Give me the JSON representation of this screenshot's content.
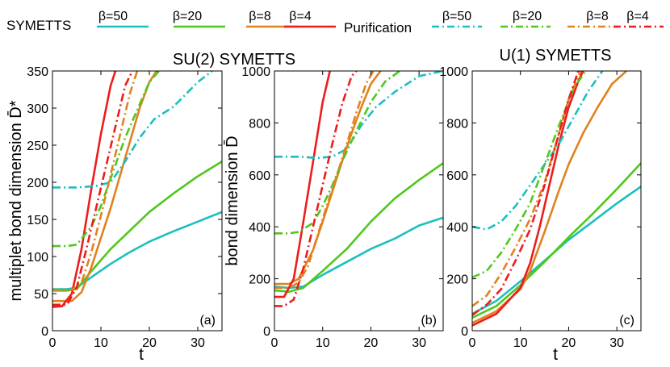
{
  "legend": {
    "symetts_label": "SYMETTS",
    "purification_label": "Purification",
    "entries": [
      {
        "label": "β=50",
        "color": "#1cbfbf"
      },
      {
        "label": "β=20",
        "color": "#4fc81c"
      },
      {
        "label": "β=8",
        "color": "#e0821e"
      },
      {
        "label": "β=4",
        "color": "#ee1c1c"
      }
    ]
  },
  "chart_data": [
    {
      "type": "line",
      "title": "SU(2) SYMETTS",
      "xlabel": "t",
      "ylabel": "multiplet bond dimension D̄*",
      "panel_label": "(a)",
      "xlim": [
        0,
        35
      ],
      "ylim": [
        0,
        350
      ],
      "xticks": [
        0,
        10,
        20,
        30
      ],
      "yticks": [
        0,
        50,
        100,
        150,
        200,
        250,
        300,
        350
      ],
      "series": [
        {
          "name": "SYMETTS β=50",
          "color": "#1cbfbf",
          "style": "solid",
          "x": [
            0,
            3,
            5,
            8,
            12,
            16,
            20,
            25,
            30,
            35
          ],
          "y": [
            56,
            56,
            58,
            72,
            90,
            106,
            120,
            134,
            147,
            160
          ]
        },
        {
          "name": "SYMETTS β=20",
          "color": "#4fc81c",
          "style": "solid",
          "x": [
            0,
            3,
            5,
            8,
            12,
            16,
            20,
            25,
            30,
            35
          ],
          "y": [
            54,
            54,
            56,
            80,
            110,
            135,
            160,
            185,
            208,
            228
          ]
        },
        {
          "name": "SYMETTS β=8",
          "color": "#e0821e",
          "style": "solid",
          "x": [
            0,
            4,
            6,
            8,
            10,
            12,
            14,
            16,
            18,
            20,
            21.5
          ],
          "y": [
            40,
            40,
            52,
            85,
            125,
            165,
            210,
            255,
            300,
            335,
            350
          ]
        },
        {
          "name": "SYMETTS β=4",
          "color": "#ee1c1c",
          "style": "solid",
          "x": [
            0,
            2,
            4,
            6,
            8,
            10,
            12,
            13
          ],
          "y": [
            32,
            33,
            50,
            110,
            190,
            265,
            330,
            350
          ]
        },
        {
          "name": "Purification β=50",
          "color": "#1cbfbf",
          "style": "dashdot",
          "x": [
            0,
            5,
            9,
            12,
            15,
            18,
            21,
            25,
            30,
            33
          ],
          "y": [
            193,
            193,
            195,
            200,
            228,
            260,
            285,
            302,
            335,
            350
          ]
        },
        {
          "name": "Purification β=20",
          "color": "#4fc81c",
          "style": "dashdot",
          "x": [
            0,
            3,
            5,
            8,
            10,
            12,
            15,
            18,
            20,
            22
          ],
          "y": [
            114,
            114,
            116,
            140,
            168,
            205,
            260,
            305,
            335,
            350
          ]
        },
        {
          "name": "Purification β=8",
          "color": "#e0821e",
          "style": "dashdot",
          "x": [
            0,
            4,
            6,
            8,
            10,
            12,
            14,
            16,
            17.5
          ],
          "y": [
            55,
            55,
            65,
            105,
            155,
            210,
            265,
            320,
            350
          ]
        },
        {
          "name": "Purification β=4",
          "color": "#ee1c1c",
          "style": "dashdot",
          "x": [
            0,
            3,
            5,
            7,
            9,
            11,
            13,
            15,
            16.5
          ],
          "y": [
            35,
            35,
            58,
            110,
            165,
            220,
            275,
            330,
            350
          ]
        }
      ]
    },
    {
      "type": "line",
      "title": "",
      "xlabel": "",
      "ylabel": "bond dimension D̄",
      "panel_label": "(b)",
      "xlim": [
        0,
        35
      ],
      "ylim": [
        0,
        1000
      ],
      "xticks": [
        0,
        10,
        20,
        30
      ],
      "yticks": [
        0,
        200,
        400,
        600,
        800,
        1000
      ],
      "series": [
        {
          "name": "SYMETTS β=50",
          "color": "#1cbfbf",
          "style": "solid",
          "x": [
            0,
            3,
            6,
            10,
            15,
            20,
            25,
            30,
            35
          ],
          "y": [
            170,
            165,
            170,
            215,
            265,
            315,
            355,
            405,
            435
          ]
        },
        {
          "name": "SYMETTS β=20",
          "color": "#4fc81c",
          "style": "solid",
          "x": [
            0,
            3,
            6,
            10,
            15,
            20,
            25,
            30,
            35
          ],
          "y": [
            155,
            150,
            165,
            230,
            315,
            420,
            510,
            580,
            645
          ]
        },
        {
          "name": "SYMETTS β=8",
          "color": "#e0821e",
          "style": "solid",
          "x": [
            0,
            3,
            5,
            8,
            10,
            12,
            14,
            16,
            18,
            20,
            22
          ],
          "y": [
            180,
            180,
            200,
            310,
            420,
            535,
            650,
            760,
            860,
            950,
            1000
          ]
        },
        {
          "name": "SYMETTS β=4",
          "color": "#ee1c1c",
          "style": "solid",
          "x": [
            0,
            2,
            4,
            6,
            8,
            10,
            11.5
          ],
          "y": [
            130,
            130,
            200,
            420,
            650,
            880,
            1000
          ]
        },
        {
          "name": "Purification β=50",
          "color": "#1cbfbf",
          "style": "dashdot",
          "x": [
            0,
            5,
            9,
            12,
            15,
            18,
            21,
            25,
            30,
            35
          ],
          "y": [
            670,
            670,
            665,
            670,
            700,
            790,
            860,
            920,
            980,
            1000
          ]
        },
        {
          "name": "Purification β=20",
          "color": "#4fc81c",
          "style": "dashdot",
          "x": [
            0,
            3,
            5,
            8,
            10,
            12,
            14,
            17,
            20,
            23,
            26
          ],
          "y": [
            375,
            375,
            380,
            415,
            480,
            560,
            650,
            770,
            880,
            960,
            1000
          ]
        },
        {
          "name": "Purification β=8",
          "color": "#e0821e",
          "style": "dashdot",
          "x": [
            0,
            3,
            5,
            7,
            9,
            11,
            13,
            15,
            17,
            19,
            20.5
          ],
          "y": [
            165,
            165,
            185,
            250,
            370,
            490,
            600,
            720,
            840,
            950,
            1000
          ]
        },
        {
          "name": "Purification β=4",
          "color": "#ee1c1c",
          "style": "dashdot",
          "x": [
            0,
            2,
            4,
            6,
            8,
            10,
            12,
            14,
            16,
            17
          ],
          "y": [
            95,
            95,
            120,
            240,
            400,
            560,
            720,
            870,
            980,
            1000
          ]
        }
      ]
    },
    {
      "type": "line",
      "title": "U(1) SYMETTS",
      "xlabel": "t",
      "ylabel": "",
      "panel_label": "(c)",
      "xlim": [
        0,
        35
      ],
      "ylim": [
        0,
        1000
      ],
      "xticks": [
        0,
        10,
        20,
        30
      ],
      "yticks": [
        0,
        200,
        400,
        600,
        800,
        1000
      ],
      "series": [
        {
          "name": "SYMETTS β=50",
          "color": "#1cbfbf",
          "style": "solid",
          "x": [
            0,
            5,
            10,
            15,
            20,
            25,
            30,
            35
          ],
          "y": [
            65,
            115,
            190,
            270,
            350,
            420,
            490,
            555
          ]
        },
        {
          "name": "SYMETTS β=20",
          "color": "#4fc81c",
          "style": "solid",
          "x": [
            0,
            5,
            10,
            15,
            20,
            25,
            30,
            35
          ],
          "y": [
            50,
            95,
            175,
            265,
            360,
            450,
            545,
            645
          ]
        },
        {
          "name": "SYMETTS β=8",
          "color": "#e0821e",
          "style": "solid",
          "x": [
            0,
            5,
            10,
            12,
            15,
            18,
            20,
            23,
            26,
            29,
            32
          ],
          "y": [
            30,
            75,
            160,
            230,
            380,
            540,
            640,
            760,
            860,
            950,
            1000
          ]
        },
        {
          "name": "SYMETTS β=4",
          "color": "#ee1c1c",
          "style": "solid",
          "x": [
            0,
            5,
            10,
            12,
            14,
            16,
            18,
            20,
            22,
            23
          ],
          "y": [
            20,
            65,
            165,
            260,
            400,
            560,
            720,
            860,
            960,
            1000
          ]
        },
        {
          "name": "Purification β=50",
          "color": "#1cbfbf",
          "style": "dashdot",
          "x": [
            0,
            3,
            6,
            9,
            12,
            15,
            18,
            21,
            24,
            27
          ],
          "y": [
            400,
            390,
            420,
            480,
            560,
            640,
            720,
            820,
            920,
            1000
          ]
        },
        {
          "name": "Purification β=20",
          "color": "#4fc81c",
          "style": "dashdot",
          "x": [
            0,
            3,
            6,
            9,
            12,
            15,
            18,
            21,
            23.5
          ],
          "y": [
            205,
            230,
            300,
            390,
            490,
            640,
            790,
            930,
            1000
          ]
        },
        {
          "name": "Purification β=8",
          "color": "#e0821e",
          "style": "dashdot",
          "x": [
            0,
            3,
            6,
            9,
            12,
            15,
            18,
            20,
            22.5
          ],
          "y": [
            95,
            135,
            220,
            320,
            430,
            570,
            760,
            890,
            1000
          ]
        },
        {
          "name": "Purification β=4",
          "color": "#ee1c1c",
          "style": "dashdot",
          "x": [
            0,
            3,
            6,
            9,
            12,
            15,
            18,
            20,
            22
          ],
          "y": [
            60,
            100,
            160,
            270,
            390,
            560,
            760,
            890,
            1000
          ]
        }
      ]
    }
  ]
}
